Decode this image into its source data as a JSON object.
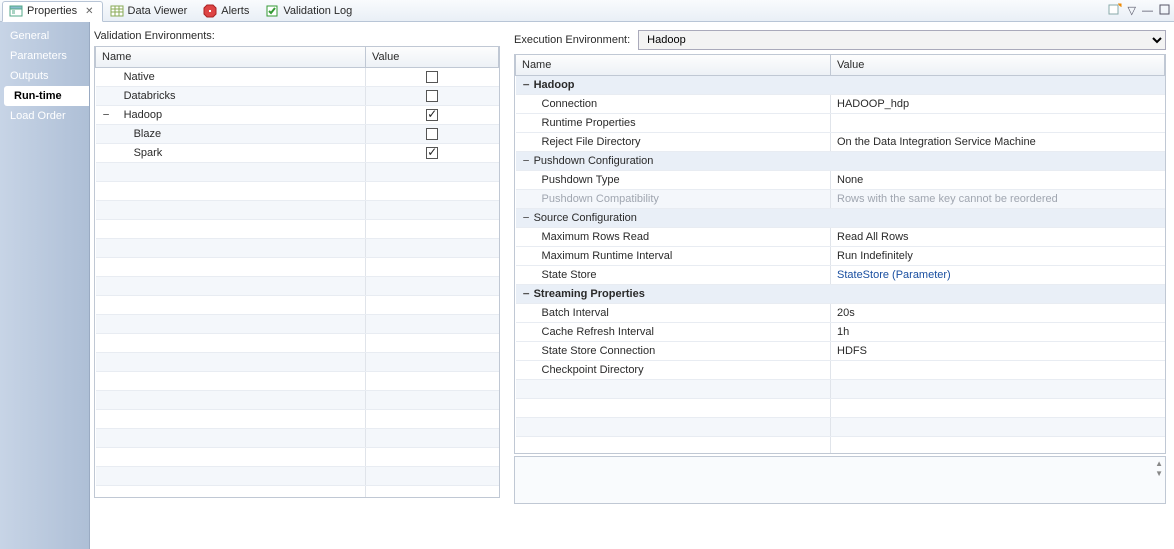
{
  "tabs": [
    {
      "label": "Properties",
      "icon": "props"
    },
    {
      "label": "Data Viewer",
      "icon": "data"
    },
    {
      "label": "Alerts",
      "icon": "alert"
    },
    {
      "label": "Validation Log",
      "icon": "valid"
    }
  ],
  "active_tab_index": 0,
  "sidebar": {
    "items": [
      "General",
      "Parameters",
      "Outputs",
      "Run-time",
      "Load Order"
    ],
    "active": "Run-time"
  },
  "validation_label": "Validation Environments:",
  "validation_headers": {
    "name": "Name",
    "value": "Value"
  },
  "validation_rows": [
    {
      "indent": 1,
      "label": "Native",
      "checked": false,
      "expander": ""
    },
    {
      "indent": 1,
      "label": "Databricks",
      "checked": false,
      "expander": ""
    },
    {
      "indent": 1,
      "label": "Hadoop",
      "checked": true,
      "expander": "−"
    },
    {
      "indent": 2,
      "label": "Blaze",
      "checked": false,
      "expander": ""
    },
    {
      "indent": 2,
      "label": "Spark",
      "checked": true,
      "expander": ""
    }
  ],
  "exec_label": "Execution Environment:",
  "exec_value": "Hadoop",
  "exec_headers": {
    "name": "Name",
    "value": "Value"
  },
  "exec_rows": [
    {
      "type": "group",
      "label": "Hadoop"
    },
    {
      "type": "prop",
      "label": "Connection",
      "value": "HADOOP_hdp"
    },
    {
      "type": "prop",
      "label": "Runtime Properties",
      "value": ""
    },
    {
      "type": "prop",
      "label": "Reject File Directory",
      "value": "On the Data Integration Service Machine"
    },
    {
      "type": "groupN",
      "label": "Pushdown Configuration"
    },
    {
      "type": "prop",
      "label": "Pushdown Type",
      "value": "None"
    },
    {
      "type": "disabled",
      "label": "Pushdown Compatibility",
      "value": "Rows with the same key cannot be reordered"
    },
    {
      "type": "groupN",
      "label": "Source Configuration"
    },
    {
      "type": "prop",
      "label": "Maximum Rows Read",
      "value": "Read All Rows"
    },
    {
      "type": "prop",
      "label": "Maximum Runtime Interval",
      "value": "Run Indefinitely"
    },
    {
      "type": "prop",
      "label": "State Store",
      "value": "StateStore (Parameter)",
      "link": true
    },
    {
      "type": "group",
      "label": "Streaming Properties"
    },
    {
      "type": "prop",
      "label": "Batch Interval",
      "value": "20s"
    },
    {
      "type": "prop",
      "label": "Cache Refresh Interval",
      "value": "1h"
    },
    {
      "type": "prop",
      "label": "State Store Connection",
      "value": "HDFS"
    },
    {
      "type": "prop",
      "label": "Checkpoint Directory",
      "value": ""
    }
  ]
}
